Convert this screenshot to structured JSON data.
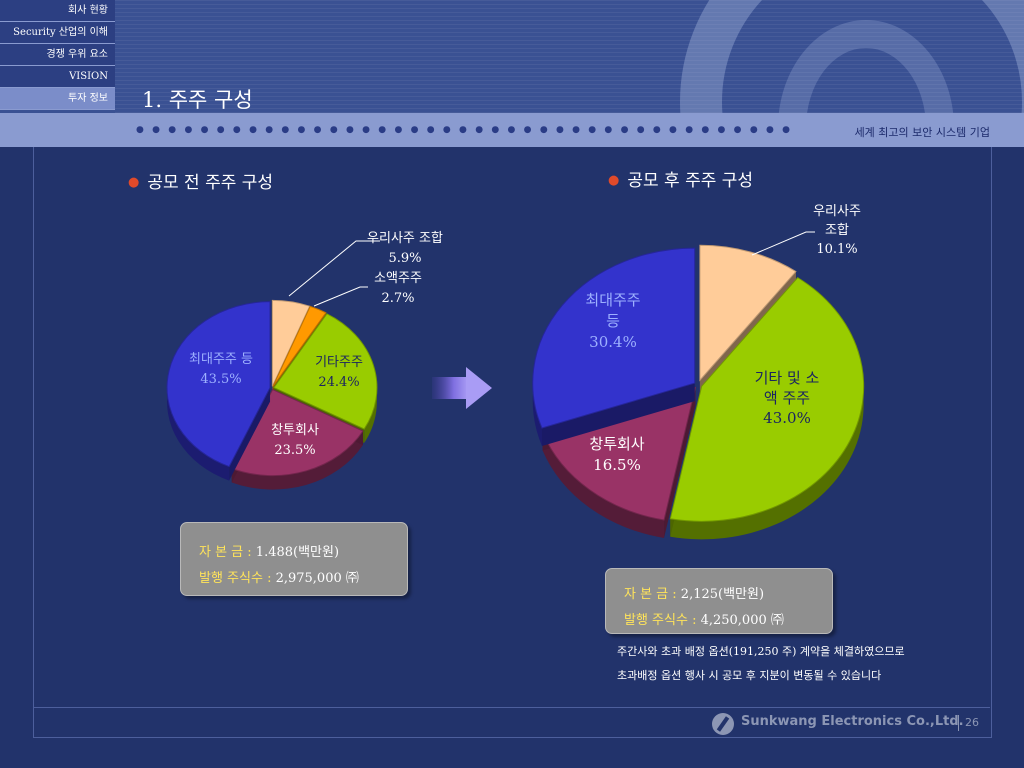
{
  "nav": {
    "items": [
      {
        "label": "회사 현황",
        "active": false
      },
      {
        "label": "Security 산업의 이해",
        "active": false
      },
      {
        "label": "경쟁 우위 요소",
        "active": false
      },
      {
        "label": "VISION",
        "active": false
      },
      {
        "label": "투자 정보",
        "active": true
      }
    ]
  },
  "page_title": "1. 주주 구성",
  "tagline": "세계 최고의 보안 시스템 기업",
  "sections": {
    "before_title": "공모 전 주주 구성",
    "after_title": "공모 후 주주 구성"
  },
  "chart_data": [
    {
      "type": "pie",
      "title": "공모 전 주주 구성",
      "slices": [
        {
          "label": "우리사주 조합",
          "value": 5.9,
          "display": "5.9%",
          "color": "#ffcc99"
        },
        {
          "label": "소액주주",
          "value": 2.7,
          "display": "2.7%",
          "color": "#ff9900"
        },
        {
          "label": "기타주주",
          "value": 24.4,
          "display": "24.4%",
          "color": "#99cc00"
        },
        {
          "label": "창투회사",
          "value": 23.5,
          "display": "23.5%",
          "color": "#993366"
        },
        {
          "label": "최대주주 등",
          "value": 43.5,
          "display": "43.5%",
          "color": "#3333cc"
        }
      ]
    },
    {
      "type": "pie",
      "title": "공모 후 주주 구성",
      "slices": [
        {
          "label": "우리사주 조합",
          "value": 10.1,
          "display": "10.1%",
          "color": "#ffcc99"
        },
        {
          "label": "기타 및 소액 주주",
          "value": 43.0,
          "display": "43.0%",
          "color": "#99cc00"
        },
        {
          "label": "창투회사",
          "value": 16.5,
          "display": "16.5%",
          "color": "#993366"
        },
        {
          "label": "최대주주 등",
          "value": 30.4,
          "display": "30.4%",
          "color": "#3333cc"
        }
      ]
    }
  ],
  "capital_before": {
    "capital_label": "자 본 금 : ",
    "capital_value": "1.488(백만원)",
    "shares_label": "발행 주식수 : ",
    "shares_value": "2,975,000 ㈜"
  },
  "capital_after": {
    "capital_label": "자 본 금 : ",
    "capital_value": "2,125(백만원)",
    "shares_label": "발행 주식수 : ",
    "shares_value": "4,250,000 ㈜"
  },
  "note": {
    "line1": "주간사와 초과 배정 옵션(191,250 주) 계약을 체결하였으므로",
    "line2": "초과배정 옵션 행사 시 공모 후 지분이 변동될 수 있습니다"
  },
  "footer": {
    "company": "Sunkwang Electronics Co.,Ltd.",
    "page": "26"
  }
}
